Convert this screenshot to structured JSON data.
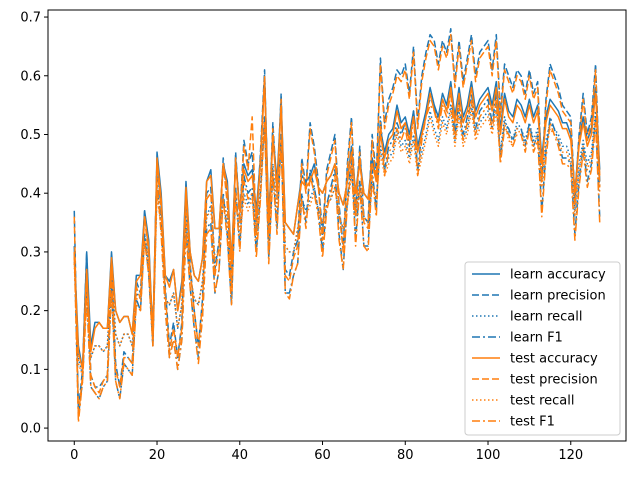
{
  "chart_data": {
    "type": "line",
    "title": "",
    "xlabel": "",
    "ylabel": "",
    "xlim": [
      -6.35,
      133.35
    ],
    "ylim": [
      -0.022,
      0.712
    ],
    "xticks": [
      0,
      20,
      40,
      60,
      80,
      100,
      120
    ],
    "yticks": [
      0.0,
      0.1,
      0.2,
      0.3,
      0.4,
      0.5,
      0.6,
      0.7
    ],
    "xtick_labels": [
      "0",
      "20",
      "40",
      "60",
      "80",
      "100",
      "120"
    ],
    "ytick_labels": [
      "0.0",
      "0.1",
      "0.2",
      "0.3",
      "0.4",
      "0.5",
      "0.6",
      "0.7"
    ],
    "legend_position": "lower-right",
    "x": [
      0,
      1,
      2,
      3,
      4,
      5,
      6,
      7,
      8,
      9,
      10,
      11,
      12,
      13,
      14,
      15,
      16,
      17,
      18,
      19,
      20,
      21,
      22,
      23,
      24,
      25,
      26,
      27,
      28,
      29,
      30,
      31,
      32,
      33,
      34,
      35,
      36,
      37,
      38,
      39,
      40,
      41,
      42,
      43,
      44,
      45,
      46,
      47,
      48,
      49,
      50,
      51,
      52,
      53,
      54,
      55,
      56,
      57,
      58,
      59,
      60,
      61,
      62,
      63,
      64,
      65,
      66,
      67,
      68,
      69,
      70,
      71,
      72,
      73,
      74,
      75,
      76,
      77,
      78,
      79,
      80,
      81,
      82,
      83,
      84,
      85,
      86,
      87,
      88,
      89,
      90,
      91,
      92,
      93,
      94,
      95,
      96,
      97,
      98,
      99,
      100,
      101,
      102,
      103,
      104,
      105,
      106,
      107,
      108,
      109,
      110,
      111,
      112,
      113,
      114,
      115,
      116,
      117,
      118,
      119,
      120,
      121,
      122,
      123,
      124,
      125,
      126,
      127
    ],
    "series": [
      {
        "name": "learn accuracy",
        "color": "#1f77b4",
        "dash": "solid",
        "values": [
          0.3,
          0.14,
          0.1,
          0.3,
          0.14,
          0.18,
          0.18,
          0.17,
          0.17,
          0.3,
          0.2,
          0.18,
          0.19,
          0.19,
          0.16,
          0.26,
          0.26,
          0.37,
          0.32,
          0.15,
          0.47,
          0.4,
          0.26,
          0.25,
          0.27,
          0.2,
          0.25,
          0.42,
          0.3,
          0.26,
          0.25,
          0.29,
          0.42,
          0.44,
          0.34,
          0.34,
          0.45,
          0.42,
          0.28,
          0.46,
          0.37,
          0.45,
          0.43,
          0.44,
          0.37,
          0.46,
          0.6,
          0.36,
          0.5,
          0.42,
          0.56,
          0.35,
          0.34,
          0.33,
          0.38,
          0.43,
          0.42,
          0.43,
          0.45,
          0.41,
          0.4,
          0.42,
          0.43,
          0.45,
          0.4,
          0.38,
          0.42,
          0.48,
          0.4,
          0.46,
          0.4,
          0.39,
          0.46,
          0.42,
          0.51,
          0.47,
          0.5,
          0.51,
          0.55,
          0.52,
          0.53,
          0.5,
          0.54,
          0.48,
          0.51,
          0.54,
          0.58,
          0.55,
          0.53,
          0.57,
          0.55,
          0.59,
          0.53,
          0.58,
          0.53,
          0.55,
          0.59,
          0.54,
          0.56,
          0.57,
          0.58,
          0.55,
          0.59,
          0.51,
          0.57,
          0.54,
          0.53,
          0.56,
          0.55,
          0.53,
          0.56,
          0.53,
          0.55,
          0.46,
          0.53,
          0.56,
          0.55,
          0.54,
          0.52,
          0.52,
          0.5,
          0.4,
          0.49,
          0.53,
          0.49,
          0.51,
          0.58,
          0.44
        ]
      },
      {
        "name": "learn precision",
        "color": "#1f77b4",
        "dash": "7,3",
        "values": [
          0.37,
          0.03,
          0.1,
          0.3,
          0.09,
          0.07,
          0.07,
          0.08,
          0.09,
          0.28,
          0.11,
          0.07,
          0.13,
          0.12,
          0.11,
          0.25,
          0.23,
          0.37,
          0.3,
          0.16,
          0.46,
          0.38,
          0.24,
          0.14,
          0.18,
          0.12,
          0.18,
          0.4,
          0.28,
          0.2,
          0.14,
          0.22,
          0.4,
          0.41,
          0.27,
          0.32,
          0.46,
          0.39,
          0.24,
          0.47,
          0.36,
          0.49,
          0.45,
          0.47,
          0.34,
          0.47,
          0.61,
          0.34,
          0.52,
          0.4,
          0.57,
          0.27,
          0.26,
          0.3,
          0.32,
          0.46,
          0.41,
          0.52,
          0.48,
          0.42,
          0.33,
          0.44,
          0.47,
          0.5,
          0.38,
          0.31,
          0.45,
          0.53,
          0.37,
          0.48,
          0.36,
          0.35,
          0.5,
          0.43,
          0.63,
          0.52,
          0.56,
          0.58,
          0.61,
          0.6,
          0.62,
          0.57,
          0.65,
          0.52,
          0.6,
          0.64,
          0.67,
          0.66,
          0.62,
          0.66,
          0.64,
          0.68,
          0.59,
          0.66,
          0.59,
          0.63,
          0.67,
          0.6,
          0.64,
          0.65,
          0.66,
          0.61,
          0.67,
          0.54,
          0.62,
          0.6,
          0.58,
          0.61,
          0.6,
          0.57,
          0.61,
          0.57,
          0.59,
          0.43,
          0.56,
          0.62,
          0.6,
          0.58,
          0.55,
          0.54,
          0.53,
          0.39,
          0.5,
          0.57,
          0.5,
          0.53,
          0.62,
          0.42
        ]
      },
      {
        "name": "learn recall",
        "color": "#1f77b4",
        "dash": "1.5,2.5",
        "values": [
          0.29,
          0.12,
          0.09,
          0.26,
          0.12,
          0.14,
          0.14,
          0.13,
          0.14,
          0.27,
          0.16,
          0.14,
          0.16,
          0.16,
          0.14,
          0.23,
          0.22,
          0.33,
          0.28,
          0.14,
          0.41,
          0.35,
          0.22,
          0.21,
          0.23,
          0.17,
          0.21,
          0.36,
          0.26,
          0.22,
          0.21,
          0.25,
          0.36,
          0.38,
          0.29,
          0.3,
          0.39,
          0.36,
          0.24,
          0.4,
          0.33,
          0.4,
          0.38,
          0.4,
          0.33,
          0.41,
          0.53,
          0.32,
          0.45,
          0.37,
          0.49,
          0.31,
          0.3,
          0.3,
          0.34,
          0.39,
          0.37,
          0.39,
          0.41,
          0.37,
          0.35,
          0.38,
          0.39,
          0.41,
          0.36,
          0.34,
          0.38,
          0.44,
          0.36,
          0.42,
          0.36,
          0.35,
          0.42,
          0.39,
          0.48,
          0.44,
          0.46,
          0.47,
          0.51,
          0.48,
          0.49,
          0.46,
          0.5,
          0.44,
          0.47,
          0.5,
          0.54,
          0.51,
          0.49,
          0.53,
          0.51,
          0.55,
          0.49,
          0.54,
          0.49,
          0.51,
          0.55,
          0.5,
          0.52,
          0.53,
          0.54,
          0.51,
          0.55,
          0.47,
          0.53,
          0.5,
          0.49,
          0.52,
          0.51,
          0.49,
          0.52,
          0.49,
          0.51,
          0.42,
          0.49,
          0.52,
          0.51,
          0.5,
          0.48,
          0.48,
          0.46,
          0.37,
          0.45,
          0.49,
          0.45,
          0.47,
          0.54,
          0.41
        ]
      },
      {
        "name": "learn F1",
        "color": "#1f77b4",
        "dash": "8,3,2,3",
        "values": [
          0.31,
          0.02,
          0.08,
          0.24,
          0.07,
          0.06,
          0.05,
          0.07,
          0.08,
          0.24,
          0.08,
          0.05,
          0.11,
          0.1,
          0.09,
          0.22,
          0.2,
          0.33,
          0.26,
          0.14,
          0.43,
          0.34,
          0.2,
          0.12,
          0.15,
          0.1,
          0.15,
          0.34,
          0.24,
          0.17,
          0.12,
          0.19,
          0.34,
          0.35,
          0.23,
          0.27,
          0.4,
          0.33,
          0.21,
          0.41,
          0.31,
          0.43,
          0.4,
          0.41,
          0.3,
          0.4,
          0.53,
          0.29,
          0.44,
          0.34,
          0.5,
          0.23,
          0.23,
          0.26,
          0.28,
          0.4,
          0.35,
          0.44,
          0.41,
          0.37,
          0.3,
          0.38,
          0.41,
          0.44,
          0.33,
          0.27,
          0.39,
          0.46,
          0.32,
          0.42,
          0.31,
          0.31,
          0.44,
          0.37,
          0.53,
          0.44,
          0.48,
          0.49,
          0.52,
          0.5,
          0.52,
          0.48,
          0.54,
          0.44,
          0.5,
          0.54,
          0.56,
          0.55,
          0.52,
          0.56,
          0.54,
          0.58,
          0.5,
          0.56,
          0.5,
          0.53,
          0.57,
          0.51,
          0.54,
          0.55,
          0.56,
          0.52,
          0.57,
          0.46,
          0.52,
          0.51,
          0.49,
          0.51,
          0.51,
          0.48,
          0.52,
          0.48,
          0.5,
          0.37,
          0.47,
          0.53,
          0.51,
          0.49,
          0.46,
          0.46,
          0.45,
          0.33,
          0.42,
          0.48,
          0.42,
          0.45,
          0.53,
          0.36
        ]
      },
      {
        "name": "test accuracy",
        "color": "#ff7f0e",
        "dash": "solid",
        "values": [
          0.29,
          0.13,
          0.1,
          0.27,
          0.13,
          0.17,
          0.18,
          0.17,
          0.17,
          0.29,
          0.2,
          0.18,
          0.19,
          0.19,
          0.16,
          0.25,
          0.26,
          0.36,
          0.31,
          0.15,
          0.46,
          0.39,
          0.26,
          0.24,
          0.27,
          0.2,
          0.24,
          0.41,
          0.3,
          0.26,
          0.25,
          0.29,
          0.42,
          0.43,
          0.34,
          0.34,
          0.45,
          0.41,
          0.28,
          0.45,
          0.37,
          0.44,
          0.42,
          0.43,
          0.36,
          0.45,
          0.59,
          0.35,
          0.49,
          0.41,
          0.55,
          0.35,
          0.34,
          0.33,
          0.38,
          0.42,
          0.41,
          0.42,
          0.44,
          0.41,
          0.4,
          0.42,
          0.43,
          0.45,
          0.4,
          0.38,
          0.42,
          0.47,
          0.4,
          0.45,
          0.4,
          0.39,
          0.45,
          0.42,
          0.5,
          0.46,
          0.49,
          0.5,
          0.54,
          0.51,
          0.52,
          0.49,
          0.53,
          0.47,
          0.5,
          0.53,
          0.57,
          0.54,
          0.52,
          0.56,
          0.54,
          0.58,
          0.52,
          0.57,
          0.52,
          0.54,
          0.58,
          0.53,
          0.55,
          0.56,
          0.57,
          0.54,
          0.58,
          0.5,
          0.56,
          0.53,
          0.52,
          0.55,
          0.54,
          0.52,
          0.55,
          0.52,
          0.54,
          0.45,
          0.52,
          0.55,
          0.54,
          0.53,
          0.51,
          0.51,
          0.49,
          0.4,
          0.48,
          0.52,
          0.48,
          0.5,
          0.57,
          0.43
        ]
      },
      {
        "name": "test precision",
        "color": "#ff7f0e",
        "dash": "7,3",
        "values": [
          0.36,
          0.02,
          0.09,
          0.27,
          0.09,
          0.07,
          0.06,
          0.08,
          0.09,
          0.27,
          0.1,
          0.07,
          0.12,
          0.12,
          0.11,
          0.24,
          0.22,
          0.36,
          0.29,
          0.16,
          0.45,
          0.37,
          0.23,
          0.13,
          0.17,
          0.12,
          0.17,
          0.39,
          0.27,
          0.2,
          0.14,
          0.21,
          0.39,
          0.4,
          0.26,
          0.31,
          0.45,
          0.38,
          0.24,
          0.46,
          0.35,
          0.48,
          0.44,
          0.53,
          0.33,
          0.46,
          0.6,
          0.33,
          0.51,
          0.39,
          0.56,
          0.26,
          0.25,
          0.29,
          0.31,
          0.45,
          0.4,
          0.51,
          0.47,
          0.41,
          0.32,
          0.43,
          0.46,
          0.49,
          0.37,
          0.3,
          0.44,
          0.52,
          0.36,
          0.47,
          0.35,
          0.34,
          0.49,
          0.42,
          0.62,
          0.51,
          0.55,
          0.57,
          0.6,
          0.59,
          0.61,
          0.56,
          0.64,
          0.51,
          0.59,
          0.63,
          0.66,
          0.65,
          0.61,
          0.65,
          0.63,
          0.67,
          0.58,
          0.65,
          0.58,
          0.62,
          0.66,
          0.59,
          0.63,
          0.64,
          0.65,
          0.6,
          0.66,
          0.53,
          0.61,
          0.59,
          0.57,
          0.6,
          0.59,
          0.56,
          0.6,
          0.56,
          0.58,
          0.42,
          0.55,
          0.61,
          0.59,
          0.57,
          0.54,
          0.53,
          0.52,
          0.38,
          0.49,
          0.56,
          0.49,
          0.52,
          0.61,
          0.41
        ]
      },
      {
        "name": "test recall",
        "color": "#ff7f0e",
        "dash": "1.5,2.5",
        "values": [
          0.28,
          0.11,
          0.09,
          0.24,
          0.12,
          0.14,
          0.14,
          0.13,
          0.14,
          0.26,
          0.16,
          0.14,
          0.16,
          0.16,
          0.14,
          0.22,
          0.22,
          0.32,
          0.27,
          0.14,
          0.4,
          0.34,
          0.22,
          0.21,
          0.23,
          0.17,
          0.21,
          0.35,
          0.26,
          0.22,
          0.21,
          0.25,
          0.36,
          0.37,
          0.29,
          0.3,
          0.39,
          0.35,
          0.24,
          0.39,
          0.33,
          0.39,
          0.37,
          0.39,
          0.32,
          0.4,
          0.52,
          0.31,
          0.44,
          0.36,
          0.48,
          0.31,
          0.3,
          0.3,
          0.34,
          0.38,
          0.36,
          0.38,
          0.4,
          0.37,
          0.35,
          0.38,
          0.39,
          0.41,
          0.36,
          0.34,
          0.38,
          0.43,
          0.36,
          0.41,
          0.36,
          0.35,
          0.41,
          0.39,
          0.47,
          0.43,
          0.45,
          0.46,
          0.5,
          0.47,
          0.48,
          0.45,
          0.49,
          0.43,
          0.46,
          0.49,
          0.53,
          0.5,
          0.48,
          0.52,
          0.5,
          0.54,
          0.48,
          0.53,
          0.48,
          0.5,
          0.54,
          0.49,
          0.51,
          0.52,
          0.53,
          0.5,
          0.54,
          0.46,
          0.52,
          0.49,
          0.48,
          0.51,
          0.5,
          0.48,
          0.51,
          0.48,
          0.5,
          0.41,
          0.48,
          0.51,
          0.5,
          0.49,
          0.47,
          0.47,
          0.45,
          0.36,
          0.44,
          0.48,
          0.44,
          0.46,
          0.53,
          0.4
        ]
      },
      {
        "name": "test F1",
        "color": "#ff7f0e",
        "dash": "8,3,2,3",
        "values": [
          0.3,
          0.01,
          0.08,
          0.22,
          0.07,
          0.06,
          0.05,
          0.07,
          0.08,
          0.23,
          0.08,
          0.05,
          0.11,
          0.1,
          0.09,
          0.21,
          0.2,
          0.32,
          0.26,
          0.14,
          0.42,
          0.33,
          0.2,
          0.12,
          0.15,
          0.1,
          0.15,
          0.33,
          0.24,
          0.17,
          0.11,
          0.19,
          0.33,
          0.34,
          0.23,
          0.27,
          0.39,
          0.32,
          0.21,
          0.4,
          0.3,
          0.42,
          0.39,
          0.4,
          0.29,
          0.39,
          0.52,
          0.28,
          0.43,
          0.33,
          0.49,
          0.23,
          0.22,
          0.26,
          0.28,
          0.39,
          0.34,
          0.43,
          0.4,
          0.36,
          0.29,
          0.37,
          0.4,
          0.43,
          0.32,
          0.27,
          0.38,
          0.45,
          0.31,
          0.41,
          0.31,
          0.3,
          0.43,
          0.36,
          0.52,
          0.43,
          0.47,
          0.48,
          0.51,
          0.49,
          0.51,
          0.47,
          0.53,
          0.43,
          0.49,
          0.53,
          0.55,
          0.54,
          0.51,
          0.55,
          0.53,
          0.57,
          0.49,
          0.55,
          0.49,
          0.52,
          0.56,
          0.5,
          0.53,
          0.54,
          0.55,
          0.51,
          0.56,
          0.45,
          0.51,
          0.5,
          0.48,
          0.5,
          0.5,
          0.47,
          0.51,
          0.47,
          0.49,
          0.36,
          0.46,
          0.52,
          0.5,
          0.48,
          0.45,
          0.45,
          0.44,
          0.32,
          0.41,
          0.47,
          0.41,
          0.44,
          0.52,
          0.35
        ]
      }
    ]
  }
}
